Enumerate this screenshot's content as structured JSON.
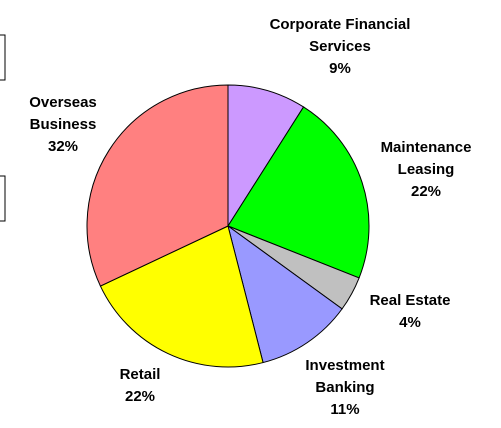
{
  "chart_data": {
    "type": "pie",
    "categories": [
      "Corporate Financial Services",
      "Maintenance Leasing",
      "Real Estate",
      "Investment Banking",
      "Retail",
      "Overseas Business"
    ],
    "values": [
      9,
      22,
      4,
      11,
      22,
      32
    ],
    "value_labels": [
      "9%",
      "22%",
      "4%",
      "11%",
      "22%",
      "32%"
    ],
    "colors": [
      "#cc99ff",
      "#00ff00",
      "#c0c0c0",
      "#9999ff",
      "#ffff00",
      "#ff8080"
    ]
  }
}
